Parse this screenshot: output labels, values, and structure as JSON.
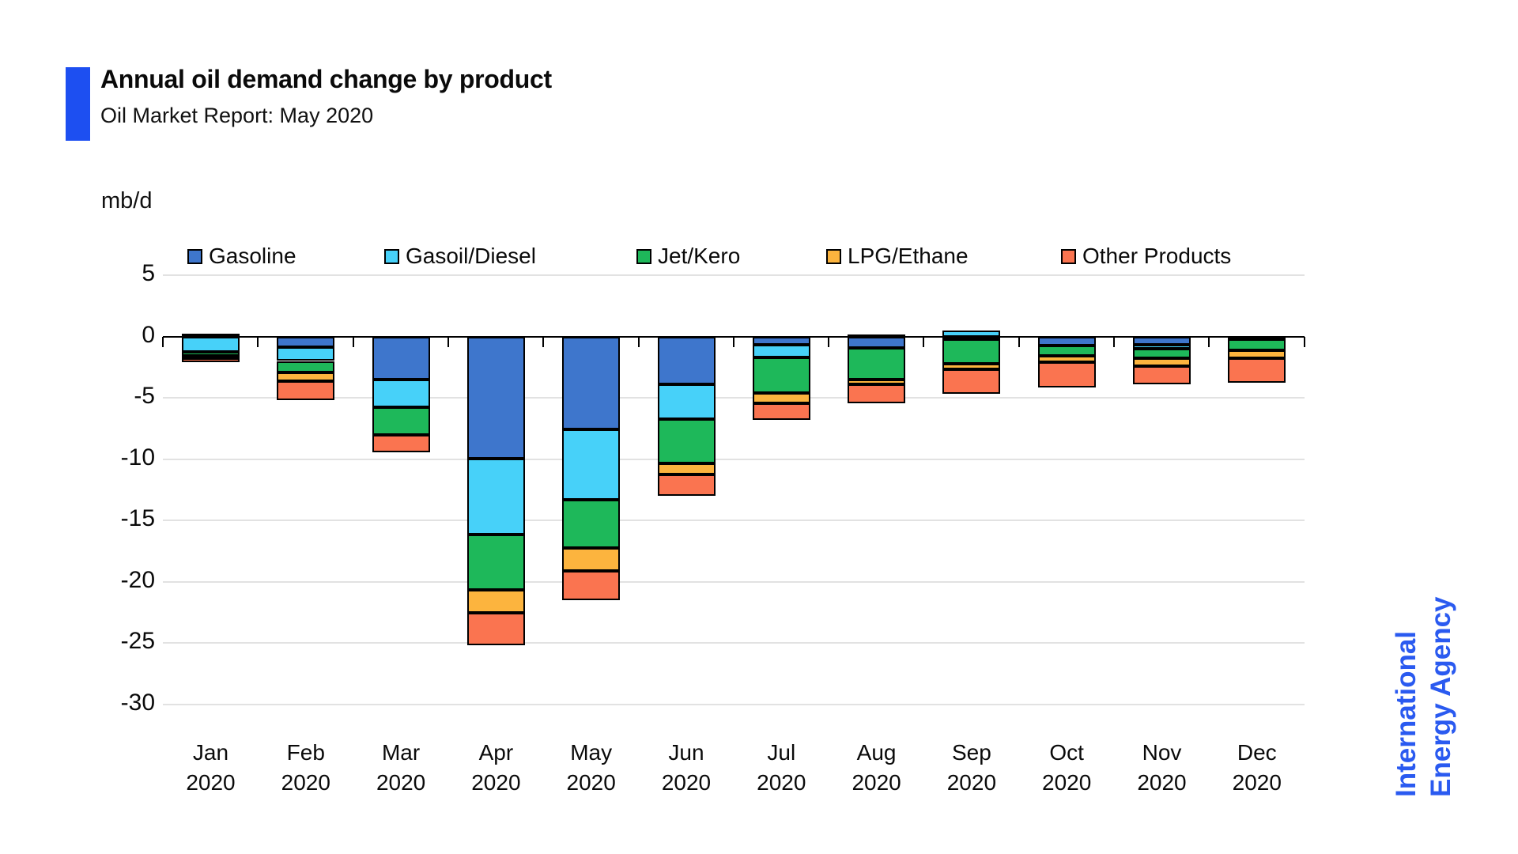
{
  "header": {
    "title": "Annual oil demand change by product",
    "subtitle": "Oil Market Report: May 2020"
  },
  "watermark": {
    "line1": "International",
    "line2": "Energy Agency"
  },
  "colors": {
    "accent": "#1d4ff1",
    "logo_blue": "#2a5af0",
    "gasoline": "#3e76cc",
    "gasoil_diesel": "#47d1f9",
    "jet_kero": "#1eb85a",
    "lpg_ethane": "#fcb43e",
    "other_products": "#fa7450",
    "gridline": "#e2e2e2",
    "axis": "#000000"
  },
  "chart_data": {
    "type": "bar",
    "stacked": true,
    "title": "Annual oil demand change by product",
    "subtitle": "Oil Market Report: May 2020",
    "ylabel": "mb/d",
    "xlabel": "",
    "ylim": [
      -30,
      5
    ],
    "yticks": [
      5,
      0,
      -5,
      -10,
      -15,
      -20,
      -25,
      -30
    ],
    "grid": true,
    "legend_position": "top",
    "categories": [
      "Jan 2020",
      "Feb 2020",
      "Mar 2020",
      "Apr 2020",
      "May 2020",
      "Jun 2020",
      "Jul 2020",
      "Aug 2020",
      "Sep 2020",
      "Oct 2020",
      "Nov 2020",
      "Dec 2020"
    ],
    "series": [
      {
        "name": "Gasoline",
        "color_key": "gasoline",
        "values": [
          0.25,
          -0.9,
          -3.5,
          -9.95,
          -7.55,
          -3.9,
          -0.7,
          -0.95,
          -0.2,
          -0.75,
          -0.7,
          -0.2
        ]
      },
      {
        "name": "Gasoil/Diesel",
        "color_key": "gasoil_diesel",
        "values": [
          -1.25,
          -1.1,
          -2.25,
          -6.2,
          -5.8,
          -2.85,
          -1.0,
          0.15,
          0.5,
          0,
          -0.3,
          0
        ]
      },
      {
        "name": "Jet/Kero",
        "color_key": "jet_kero",
        "values": [
          -0.3,
          -0.95,
          -2.25,
          -4.55,
          -3.9,
          -3.6,
          -2.9,
          -2.55,
          -2.0,
          -0.85,
          -0.75,
          -0.95
        ]
      },
      {
        "name": "LPG/Ethane",
        "color_key": "lpg_ethane",
        "values": [
          -0.25,
          -0.7,
          0,
          -1.85,
          -1.9,
          -0.9,
          -0.85,
          -0.4,
          -0.45,
          -0.5,
          -0.65,
          -0.6
        ]
      },
      {
        "name": "Other Products",
        "color_key": "other_products",
        "values": [
          -0.3,
          -1.55,
          -1.45,
          -2.65,
          -2.35,
          -1.75,
          -1.35,
          -1.55,
          -2.05,
          -2.05,
          -1.5,
          -2.05
        ]
      }
    ]
  }
}
